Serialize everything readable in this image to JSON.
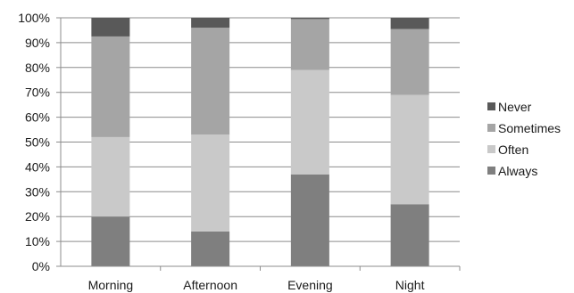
{
  "chart_data": {
    "type": "bar",
    "stacked": true,
    "percent_stacked": true,
    "categories": [
      "Morning",
      "Afternoon",
      "Evening",
      "Night"
    ],
    "series": [
      {
        "name": "Always",
        "color": "#7f7f7f",
        "values": [
          20,
          14,
          37,
          25
        ]
      },
      {
        "name": "Often",
        "color": "#c9c9c9",
        "values": [
          32,
          39,
          42,
          44
        ]
      },
      {
        "name": "Sometimes",
        "color": "#a5a5a5",
        "values": [
          40.5,
          43,
          20.5,
          26.5
        ]
      },
      {
        "name": "Never",
        "color": "#595959",
        "values": [
          7.5,
          4,
          0.5,
          4.5
        ]
      }
    ],
    "ylim": [
      0,
      100
    ],
    "y_ticks": [
      "0%",
      "10%",
      "20%",
      "30%",
      "40%",
      "50%",
      "60%",
      "70%",
      "80%",
      "90%",
      "100%"
    ],
    "grid": true,
    "legend_position": "right",
    "legend_order": [
      "Never",
      "Sometimes",
      "Often",
      "Always"
    ]
  }
}
